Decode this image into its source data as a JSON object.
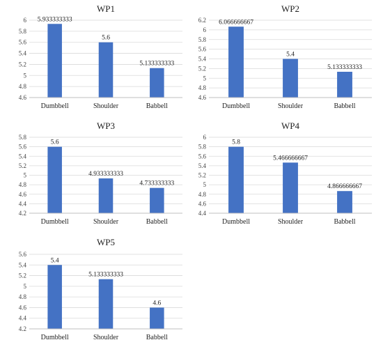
{
  "chart_data": [
    {
      "type": "bar",
      "title": "WP1",
      "categories": [
        "Dumbbell",
        "Shoulder",
        "Babbell"
      ],
      "values": [
        5.933333333,
        5.6,
        5.133333333
      ],
      "value_labels": [
        "5.933333333",
        "5.6",
        "5.133333333"
      ],
      "ylim": [
        4.6,
        6
      ],
      "yticks": [
        "4.6",
        "4.8",
        "5",
        "5.2",
        "5.4",
        "5.6",
        "5.8",
        "6"
      ],
      "grid": true,
      "legend": "none",
      "color": "#4472C4"
    },
    {
      "type": "bar",
      "title": "WP2",
      "categories": [
        "Dumbbell",
        "Shoulder",
        "Babbell"
      ],
      "values": [
        6.066666667,
        5.4,
        5.133333333
      ],
      "value_labels": [
        "6.066666667",
        "5.4",
        "5.133333333"
      ],
      "ylim": [
        4.6,
        6.2
      ],
      "yticks": [
        "4.6",
        "4.8",
        "5",
        "5.2",
        "5.4",
        "5.6",
        "5.8",
        "6",
        "6.2"
      ],
      "grid": true,
      "legend": "none",
      "color": "#4472C4"
    },
    {
      "type": "bar",
      "title": "WP3",
      "categories": [
        "Dumbbell",
        "Shoulder",
        "Babbell"
      ],
      "values": [
        5.6,
        4.933333333,
        4.733333333
      ],
      "value_labels": [
        "5.6",
        "4.933333333",
        "4.733333333"
      ],
      "ylim": [
        4.2,
        5.8
      ],
      "yticks": [
        "4.2",
        "4.4",
        "4.6",
        "4.8",
        "5",
        "5.2",
        "5.4",
        "5.6",
        "5.8"
      ],
      "grid": true,
      "legend": "none",
      "color": "#4472C4"
    },
    {
      "type": "bar",
      "title": "WP4",
      "categories": [
        "Dumbbell",
        "Shoulder",
        "Babbell"
      ],
      "values": [
        5.8,
        5.466666667,
        4.866666667
      ],
      "value_labels": [
        "5.8",
        "5.466666667",
        "4.866666667"
      ],
      "ylim": [
        4.4,
        6
      ],
      "yticks": [
        "4.4",
        "4.6",
        "4.8",
        "5",
        "5.2",
        "5.4",
        "5.6",
        "5.8",
        "6"
      ],
      "grid": true,
      "legend": "none",
      "color": "#4472C4"
    },
    {
      "type": "bar",
      "title": "WP5",
      "categories": [
        "Dumbbell",
        "Shoulder",
        "Babbell"
      ],
      "values": [
        5.4,
        5.133333333,
        4.6
      ],
      "value_labels": [
        "5.4",
        "5.133333333",
        "4.6"
      ],
      "ylim": [
        4.2,
        5.6
      ],
      "yticks": [
        "4.2",
        "4.4",
        "4.6",
        "4.8",
        "5",
        "5.2",
        "5.4",
        "5.6"
      ],
      "grid": true,
      "legend": "none",
      "color": "#4472C4"
    }
  ]
}
